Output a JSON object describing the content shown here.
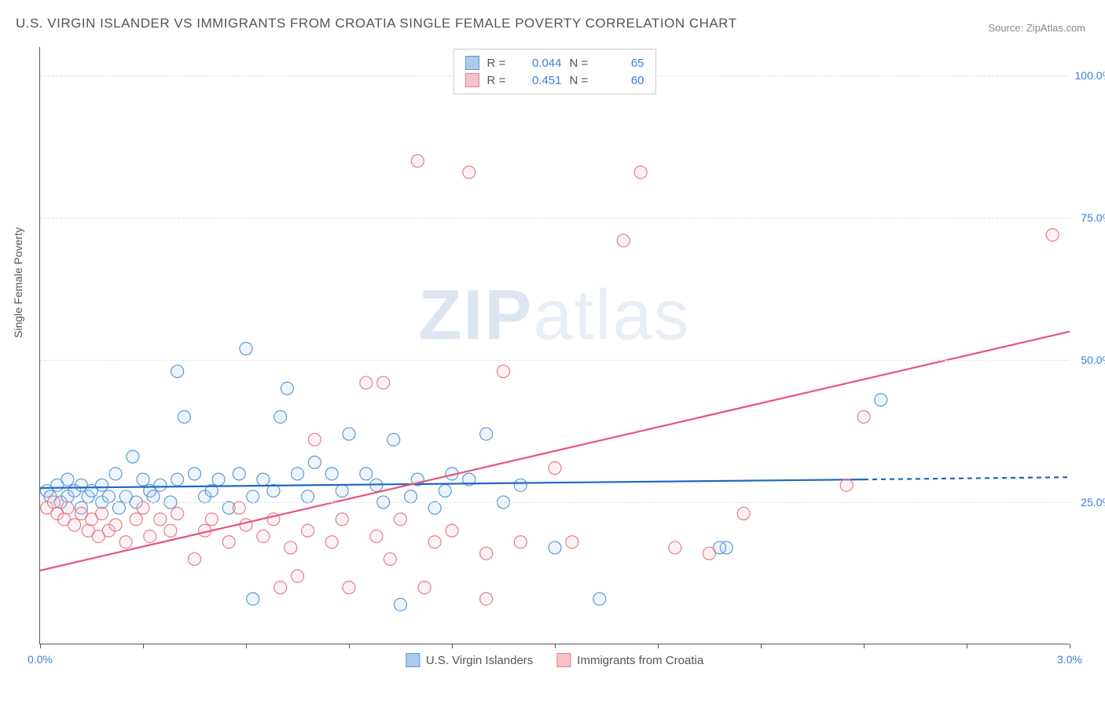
{
  "title": "U.S. VIRGIN ISLANDER VS IMMIGRANTS FROM CROATIA SINGLE FEMALE POVERTY CORRELATION CHART",
  "source": "Source: ZipAtlas.com",
  "watermark_bold": "ZIP",
  "watermark_light": "atlas",
  "chart": {
    "type": "scatter",
    "xlim": [
      0.0,
      3.0
    ],
    "ylim": [
      0.0,
      105.0
    ],
    "x_ticks": [
      0.0,
      0.3,
      0.6,
      0.9,
      1.2,
      1.5,
      1.8,
      2.1,
      2.4,
      2.7,
      3.0
    ],
    "x_tick_labels": {
      "0": "0.0%",
      "3": "3.0%"
    },
    "y_gridlines": [
      25.0,
      50.0,
      75.0,
      100.0
    ],
    "y_tick_labels": {
      "25": "25.0%",
      "50": "50.0%",
      "75": "75.0%",
      "100": "100.0%"
    },
    "y_axis_title": "Single Female Poverty",
    "background_color": "#ffffff",
    "grid_color": "#e0e0e0",
    "axis_color": "#555555",
    "tick_label_color": "#3b7dd8",
    "marker_radius": 8,
    "marker_stroke_width": 1.2,
    "marker_fill_opacity": 0.22,
    "line_width": 2.2
  },
  "series": [
    {
      "name": "U.S. Virgin Islanders",
      "color_fill": "#aecbeb",
      "color_stroke": "#5b9bd5",
      "line_color": "#2067c7",
      "R": "0.044",
      "N": "65",
      "trend": {
        "x1": 0.0,
        "y1": 27.5,
        "x2": 2.4,
        "y2": 29.0
      },
      "trend_ext": {
        "x1": 2.4,
        "y1": 29.0,
        "x2": 3.0,
        "y2": 29.4
      },
      "points": [
        [
          0.02,
          27
        ],
        [
          0.03,
          26
        ],
        [
          0.05,
          28
        ],
        [
          0.06,
          25
        ],
        [
          0.08,
          29
        ],
        [
          0.08,
          26
        ],
        [
          0.1,
          27
        ],
        [
          0.12,
          28
        ],
        [
          0.12,
          24
        ],
        [
          0.14,
          26
        ],
        [
          0.15,
          27
        ],
        [
          0.18,
          25
        ],
        [
          0.18,
          28
        ],
        [
          0.2,
          26
        ],
        [
          0.22,
          30
        ],
        [
          0.23,
          24
        ],
        [
          0.25,
          26
        ],
        [
          0.27,
          33
        ],
        [
          0.28,
          25
        ],
        [
          0.3,
          29
        ],
        [
          0.32,
          27
        ],
        [
          0.33,
          26
        ],
        [
          0.35,
          28
        ],
        [
          0.38,
          25
        ],
        [
          0.4,
          29
        ],
        [
          0.42,
          40
        ],
        [
          0.45,
          30
        ],
        [
          0.48,
          26
        ],
        [
          0.5,
          27
        ],
        [
          0.52,
          29
        ],
        [
          0.55,
          24
        ],
        [
          0.58,
          30
        ],
        [
          0.6,
          52
        ],
        [
          0.62,
          26
        ],
        [
          0.65,
          29
        ],
        [
          0.68,
          27
        ],
        [
          0.7,
          40
        ],
        [
          0.62,
          8
        ],
        [
          0.72,
          45
        ],
        [
          0.75,
          30
        ],
        [
          0.78,
          26
        ],
        [
          0.8,
          32
        ],
        [
          0.85,
          30
        ],
        [
          0.88,
          27
        ],
        [
          0.9,
          37
        ],
        [
          0.4,
          48
        ],
        [
          0.95,
          30
        ],
        [
          0.98,
          28
        ],
        [
          1.0,
          25
        ],
        [
          1.03,
          36
        ],
        [
          1.08,
          26
        ],
        [
          1.1,
          29
        ],
        [
          1.15,
          24
        ],
        [
          1.18,
          27
        ],
        [
          1.2,
          30
        ],
        [
          1.05,
          7
        ],
        [
          1.25,
          29
        ],
        [
          1.3,
          37
        ],
        [
          1.35,
          25
        ],
        [
          1.4,
          28
        ],
        [
          1.5,
          17
        ],
        [
          1.63,
          8
        ],
        [
          2.0,
          17
        ],
        [
          2.45,
          43
        ],
        [
          1.98,
          17
        ]
      ]
    },
    {
      "name": "Immigrants from Croatia",
      "color_fill": "#f5c2c7",
      "color_stroke": "#e77c8d",
      "line_color": "#e7557a",
      "R": "0.451",
      "N": "60",
      "trend": {
        "x1": 0.0,
        "y1": 13.0,
        "x2": 3.0,
        "y2": 55.0
      },
      "points": [
        [
          0.02,
          24
        ],
        [
          0.04,
          25
        ],
        [
          0.05,
          23
        ],
        [
          0.07,
          22
        ],
        [
          0.08,
          24
        ],
        [
          0.1,
          21
        ],
        [
          0.12,
          23
        ],
        [
          0.14,
          20
        ],
        [
          0.15,
          22
        ],
        [
          0.17,
          19
        ],
        [
          0.18,
          23
        ],
        [
          0.2,
          20
        ],
        [
          0.22,
          21
        ],
        [
          0.25,
          18
        ],
        [
          0.28,
          22
        ],
        [
          0.3,
          24
        ],
        [
          0.32,
          19
        ],
        [
          0.35,
          22
        ],
        [
          0.38,
          20
        ],
        [
          0.4,
          23
        ],
        [
          0.45,
          15
        ],
        [
          0.48,
          20
        ],
        [
          0.5,
          22
        ],
        [
          0.55,
          18
        ],
        [
          0.58,
          24
        ],
        [
          0.6,
          21
        ],
        [
          0.65,
          19
        ],
        [
          0.68,
          22
        ],
        [
          0.7,
          10
        ],
        [
          0.73,
          17
        ],
        [
          0.75,
          12
        ],
        [
          0.78,
          20
        ],
        [
          0.8,
          36
        ],
        [
          0.85,
          18
        ],
        [
          0.88,
          22
        ],
        [
          0.9,
          10
        ],
        [
          0.95,
          46
        ],
        [
          0.98,
          19
        ],
        [
          1.0,
          46
        ],
        [
          1.02,
          15
        ],
        [
          1.05,
          22
        ],
        [
          1.1,
          85
        ],
        [
          1.12,
          10
        ],
        [
          1.15,
          18
        ],
        [
          1.2,
          20
        ],
        [
          1.25,
          83
        ],
        [
          1.3,
          16
        ],
        [
          1.35,
          48
        ],
        [
          1.4,
          18
        ],
        [
          1.5,
          31
        ],
        [
          1.55,
          18
        ],
        [
          1.7,
          71
        ],
        [
          1.75,
          83
        ],
        [
          1.85,
          17
        ],
        [
          1.95,
          16
        ],
        [
          2.05,
          23
        ],
        [
          2.35,
          28
        ],
        [
          2.4,
          40
        ],
        [
          2.95,
          72
        ],
        [
          1.3,
          8
        ]
      ]
    }
  ],
  "legend_top": {
    "R_label": "R =",
    "N_label": "N ="
  },
  "legend_bottom": [
    {
      "series": 0
    },
    {
      "series": 1
    }
  ]
}
